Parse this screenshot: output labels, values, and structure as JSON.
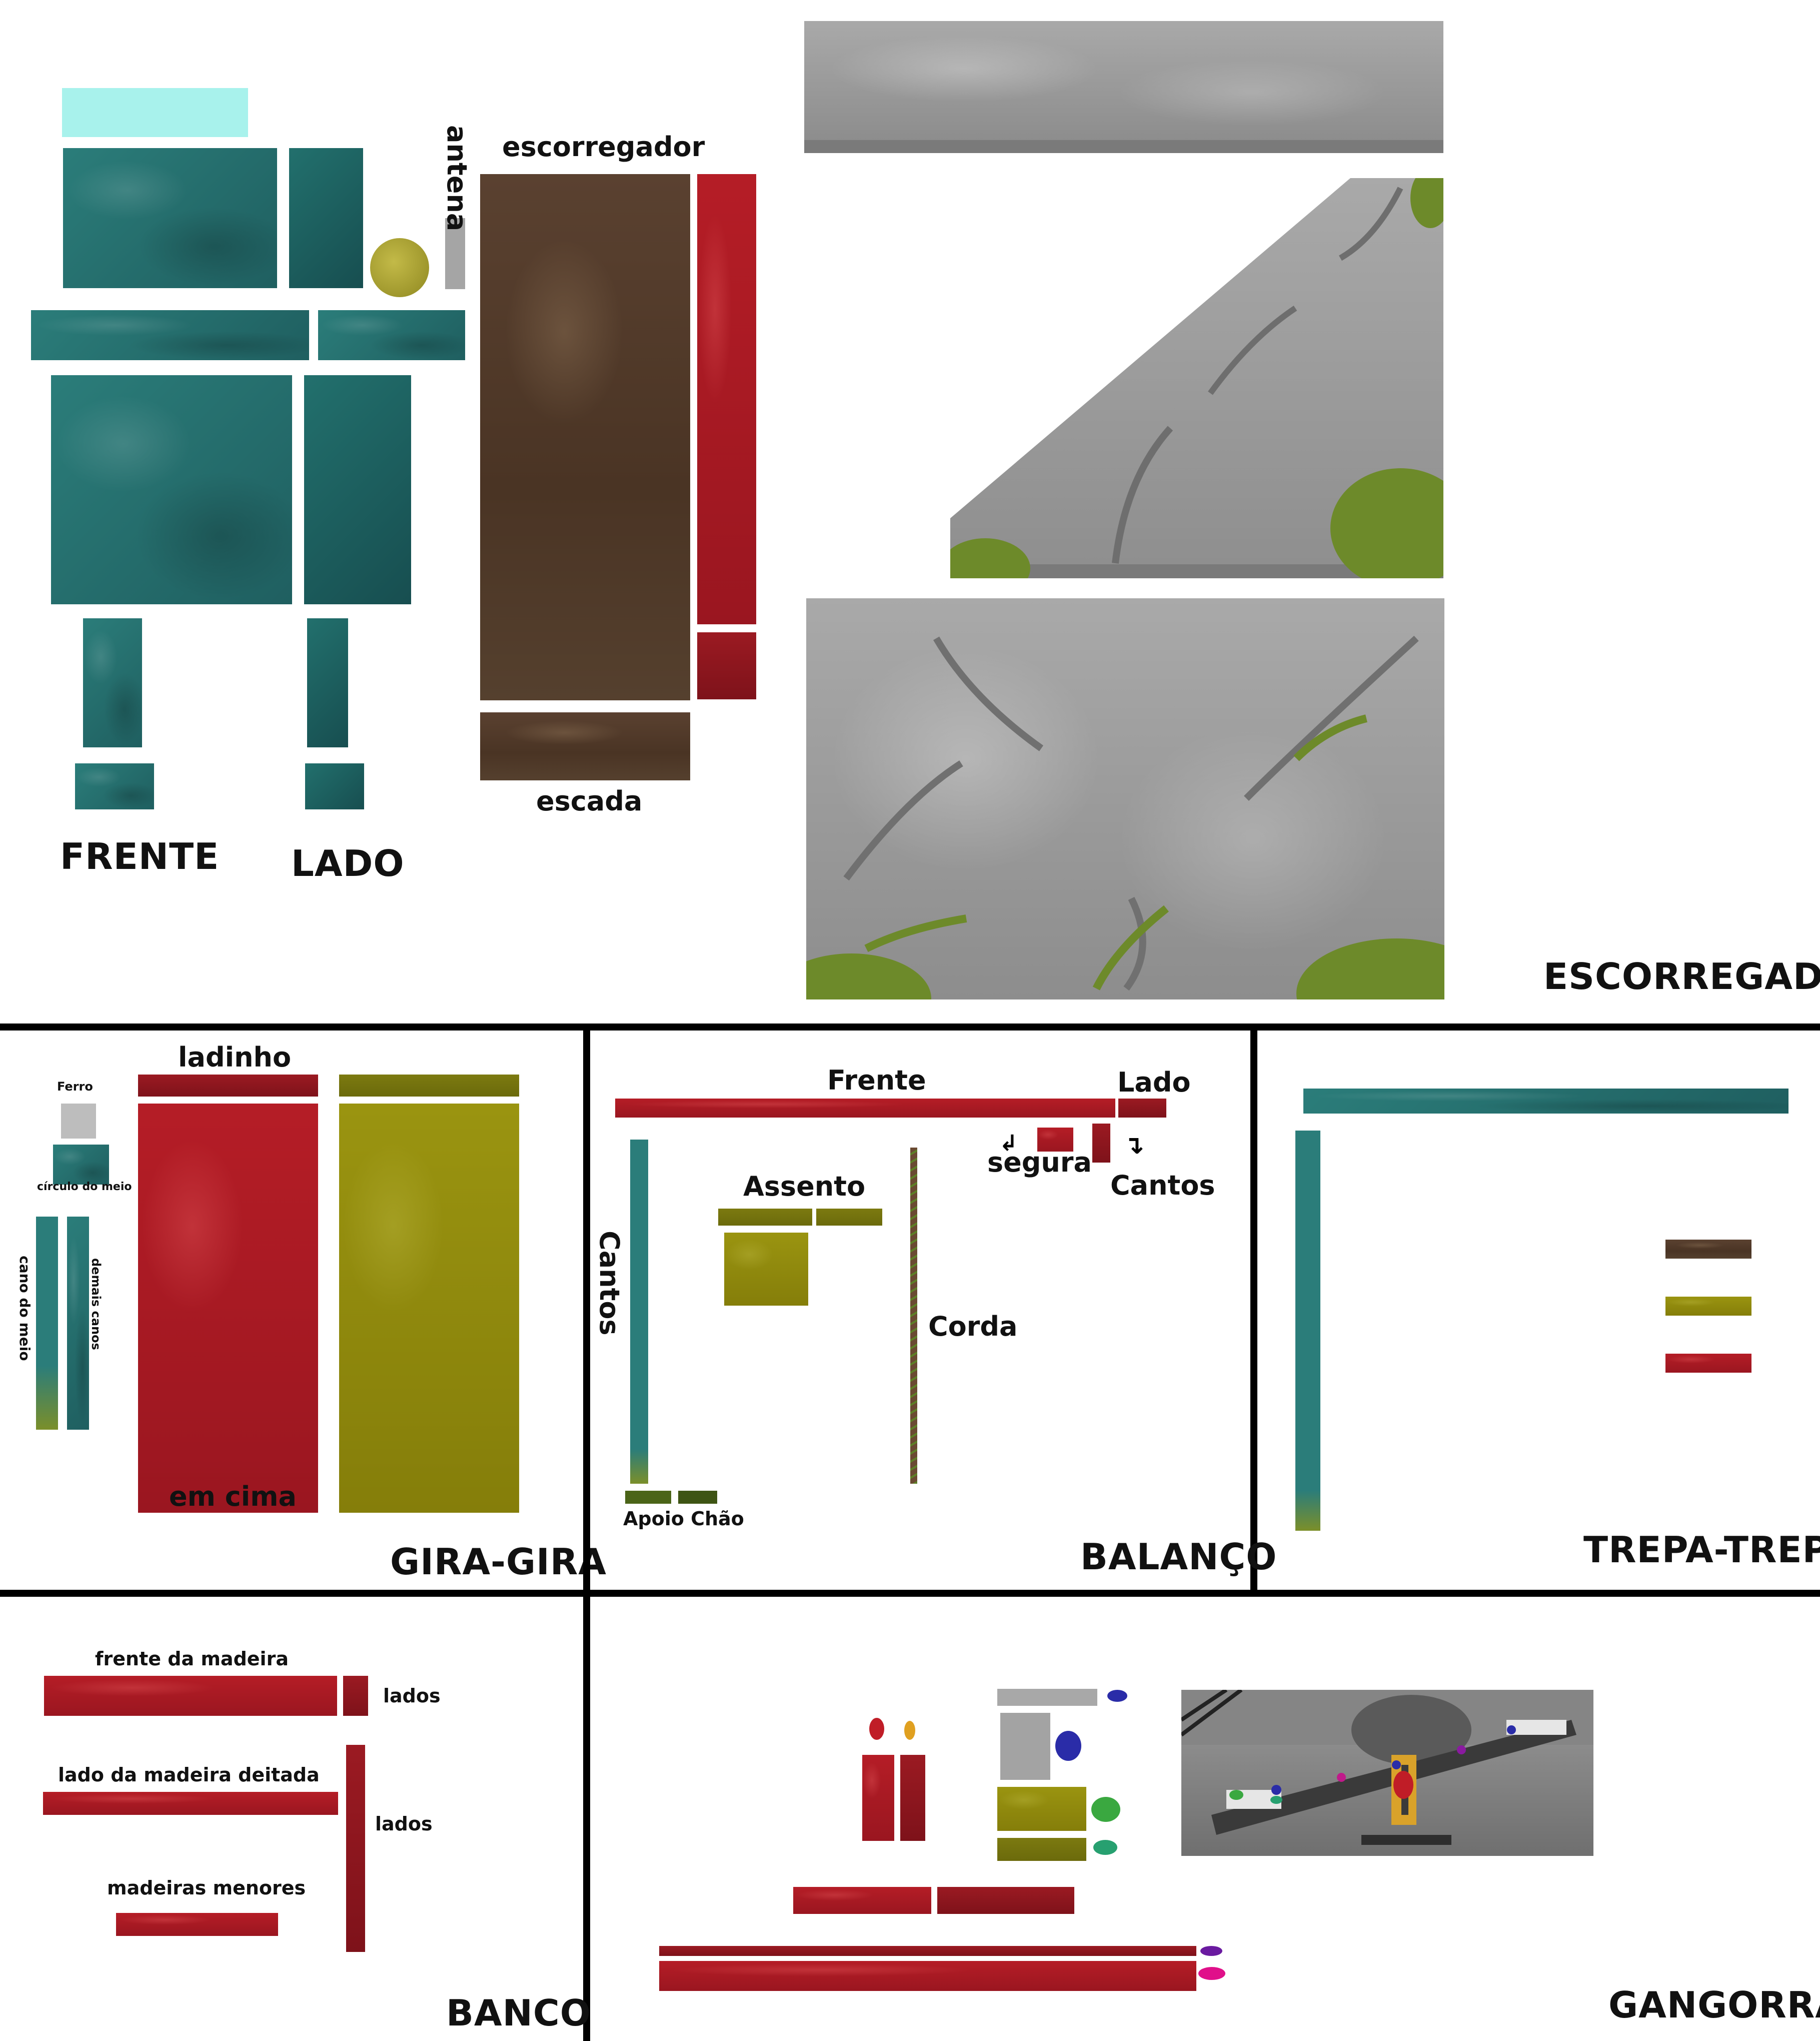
{
  "colors": {
    "teal": "#2b7d7a",
    "brown": "#55402e",
    "red": "#b51d26",
    "olive": "#9a9410",
    "grey": "#9c9c9c",
    "moss": "#6d8a2a",
    "cyan": "#a8f2ec"
  },
  "escorregador": {
    "section_title": "ESCORREGADOR",
    "tower_front_label": "FRENTE",
    "tower_side_label": "LADO",
    "antenna_label": "antena",
    "slide_label": "escorregador",
    "ladder_label": "escada"
  },
  "giragira": {
    "section_title": "GIRA-GIRA",
    "ferro_label": "Ferro",
    "center_circle_label": "círculo do meio",
    "center_pipe_label": "cano do meio",
    "other_pipes_label": "demais canos",
    "side_label": "ladinho",
    "top_label": "em cima"
  },
  "balanco": {
    "section_title": "BALANÇO",
    "front_label": "Frente",
    "side_label": "Lado",
    "grip_label": "segura",
    "corners_label": "Cantos",
    "corners_vertical_label": "Cantos",
    "seat_label": "Assento",
    "rope_label": "Corda",
    "ground_support_label": "Apoio Chão"
  },
  "trepatrepa": {
    "section_title": "TREPA-TREPA"
  },
  "banco": {
    "section_title": "BANCO",
    "wood_front_label": "frente da madeira",
    "sides_label_1": "lados",
    "lying_wood_side_label": "lado da madeira deitada",
    "sides_label_2": "lados",
    "small_woods_label": "madeiras menores"
  },
  "gangorra": {
    "section_title": "GANGORRA"
  }
}
